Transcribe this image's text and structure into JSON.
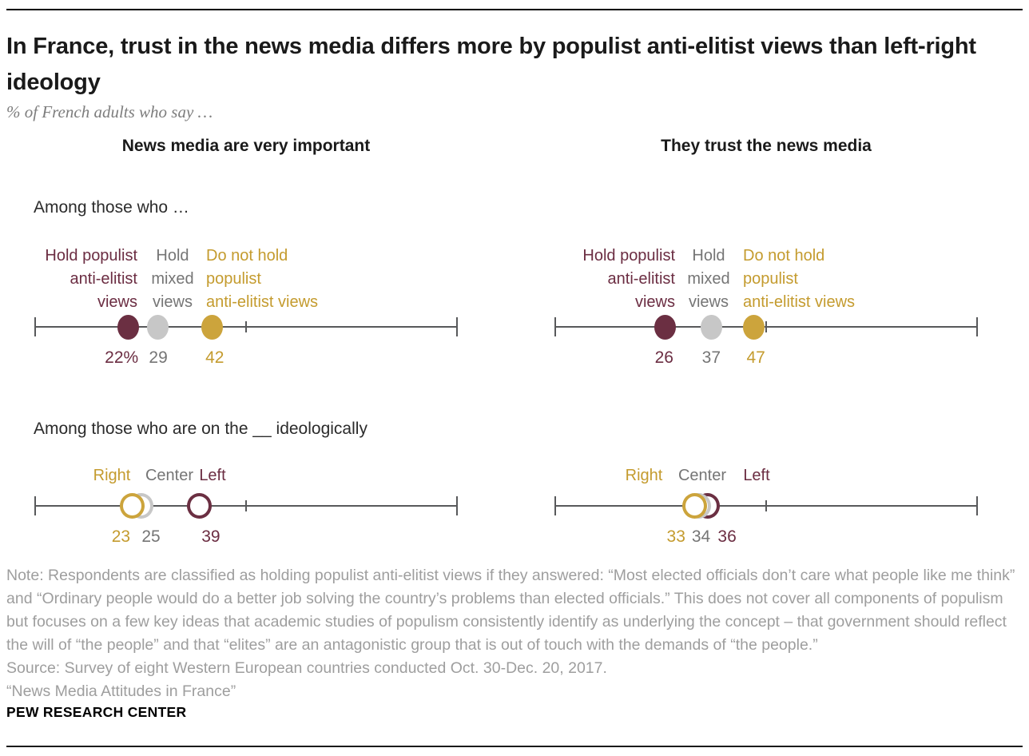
{
  "header": {
    "title": "In France, trust in the news media differs more by populist anti-elitist views than left-right ideology",
    "subtitle": "% of French adults who say …"
  },
  "panels": [
    {
      "header": "News media are very important"
    },
    {
      "header": "They trust the news media"
    }
  ],
  "sections": [
    {
      "label": "Among those who …"
    },
    {
      "label": "Among those who are on the __ ideologically"
    }
  ],
  "palette": {
    "maroon": {
      "dot": "#6b2f42",
      "text": "#6b2d42"
    },
    "gray": {
      "dot": "#c7c7c7",
      "text": "#757575"
    },
    "gold": {
      "dot": "#cca43c",
      "text": "#c49b2e"
    },
    "axis": "#58595b",
    "title": "#1a1a1a",
    "note": "#9e9e9e"
  },
  "chart_data": [
    {
      "type": "scatter",
      "panel": "News media are very important",
      "question": "Among those who …",
      "xlim": [
        0,
        100
      ],
      "axis_ticks": [
        0,
        50,
        100
      ],
      "grid": false,
      "points": [
        {
          "label": "Hold populist anti-elitist views",
          "label_lines": [
            "Hold populist",
            "anti-elitist",
            "views"
          ],
          "value": 22,
          "display": "22%",
          "color": "maroon",
          "style": "filled"
        },
        {
          "label": "Hold mixed views",
          "label_lines": [
            "Hold",
            "mixed",
            "views"
          ],
          "value": 29,
          "display": "29",
          "color": "gray",
          "style": "filled"
        },
        {
          "label": "Do not hold populist anti-elitist views",
          "label_lines": [
            "Do not hold",
            "populist",
            "anti-elitist views"
          ],
          "value": 42,
          "display": "42",
          "color": "gold",
          "style": "filled"
        }
      ]
    },
    {
      "type": "scatter",
      "panel": "They trust the news media",
      "question": "Among those who …",
      "xlim": [
        0,
        100
      ],
      "axis_ticks": [
        0,
        50,
        100
      ],
      "grid": false,
      "points": [
        {
          "label": "Hold populist anti-elitist views",
          "label_lines": [
            "Hold populist",
            "anti-elitist",
            "views"
          ],
          "value": 26,
          "display": "26",
          "color": "maroon",
          "style": "filled"
        },
        {
          "label": "Hold mixed views",
          "label_lines": [
            "Hold",
            "mixed",
            "views"
          ],
          "value": 37,
          "display": "37",
          "color": "gray",
          "style": "filled"
        },
        {
          "label": "Do not hold populist anti-elitist views",
          "label_lines": [
            "Do not hold",
            "populist",
            "anti-elitist views"
          ],
          "value": 47,
          "display": "47",
          "color": "gold",
          "style": "filled"
        }
      ]
    },
    {
      "type": "scatter",
      "panel": "News media are very important",
      "question": "Among those who are on the __ ideologically",
      "xlim": [
        0,
        100
      ],
      "axis_ticks": [
        0,
        50,
        100
      ],
      "grid": false,
      "points": [
        {
          "label": "Right",
          "label_lines": [
            "Right"
          ],
          "value": 23,
          "display": "23",
          "color": "gold",
          "style": "ring"
        },
        {
          "label": "Center",
          "label_lines": [
            "Center"
          ],
          "value": 25,
          "display": "25",
          "color": "gray",
          "style": "ring"
        },
        {
          "label": "Left",
          "label_lines": [
            "Left"
          ],
          "value": 39,
          "display": "39",
          "color": "maroon",
          "style": "ring"
        }
      ]
    },
    {
      "type": "scatter",
      "panel": "They trust the news media",
      "question": "Among those who are on the __ ideologically",
      "xlim": [
        0,
        100
      ],
      "axis_ticks": [
        0,
        50,
        100
      ],
      "grid": false,
      "points": [
        {
          "label": "Right",
          "label_lines": [
            "Right"
          ],
          "value": 33,
          "display": "33",
          "color": "gold",
          "style": "ring"
        },
        {
          "label": "Center",
          "label_lines": [
            "Center"
          ],
          "value": 34,
          "display": "34",
          "color": "gray",
          "style": "ring"
        },
        {
          "label": "Left",
          "label_lines": [
            "Left"
          ],
          "value": 36,
          "display": "36",
          "color": "maroon",
          "style": "ring"
        }
      ]
    }
  ],
  "footer": {
    "note": "Note: Respondents are classified as holding populist anti-elitist views if they answered: “Most elected officials don’t care what people like me think” and “Ordinary people would do a better job solving the country’s problems than elected officials.” This does not cover all components of populism but focuses on a few key ideas that academic studies of populism consistently identify as underlying the concept – that government should reflect the will of “the people” and that “elites” are an antagonistic group that is out of touch with the demands of “the people.”",
    "source": "Source: Survey of eight Western European countries conducted Oct. 30-Dec. 20, 2017.",
    "report": "“News Media Attitudes in France”",
    "brand": "PEW RESEARCH CENTER"
  }
}
